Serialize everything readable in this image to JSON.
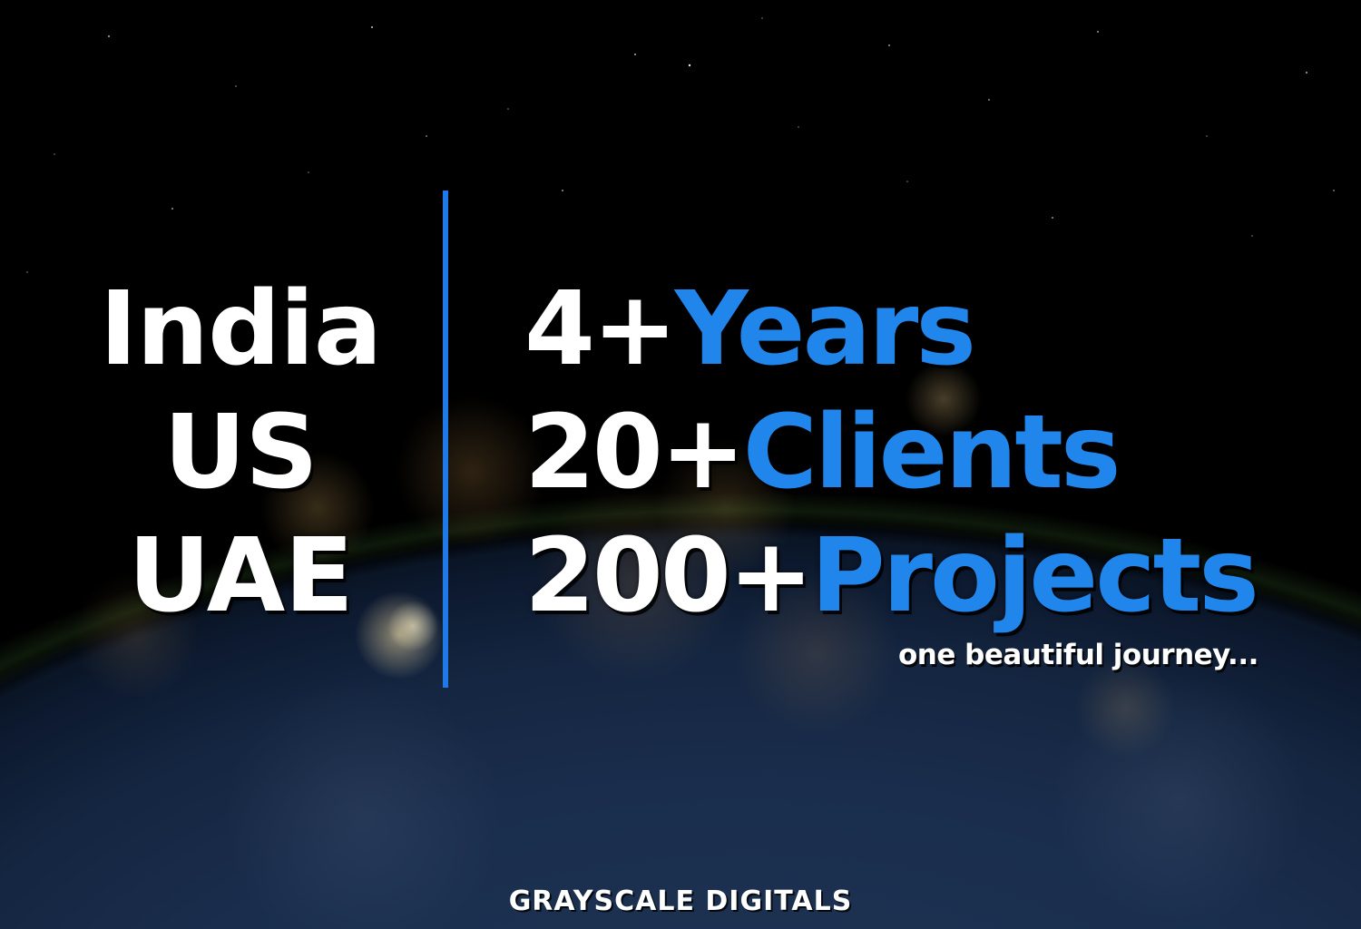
{
  "countries": [
    "India",
    "US",
    "UAE"
  ],
  "stats": [
    {
      "number": "4+",
      "word": "Years"
    },
    {
      "number": "20+",
      "word": "Clients"
    },
    {
      "number": "200+",
      "word": "Projects"
    }
  ],
  "tagline": "one beautiful journey...",
  "brand": "GRAYSCALE DIGITALS",
  "colors": {
    "accent": "#2186ec",
    "divider": "#1f7ae8",
    "text": "#ffffff",
    "space": "#000000"
  }
}
